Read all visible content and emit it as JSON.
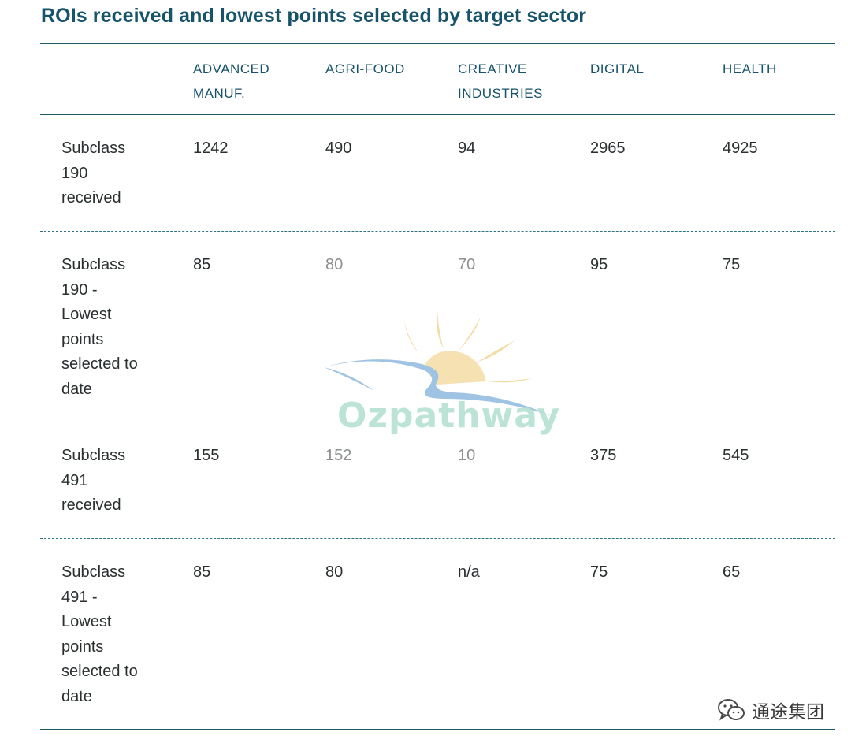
{
  "title": "ROIs received and lowest points selected by target sector",
  "columns": [
    "ADVANCED\nMANUF.",
    "AGRI-FOOD",
    "CREATIVE\nINDUSTRIES",
    "DIGITAL",
    "HEALTH"
  ],
  "rows": [
    {
      "label": "Subclass\n190\nreceived",
      "values": [
        "1242",
        "490",
        "94",
        "2965",
        "4925"
      ]
    },
    {
      "label": "Subclass\n190 -\nLowest\npoints\nselected to\ndate",
      "values": [
        "85",
        "80",
        "70",
        "95",
        "75"
      ]
    },
    {
      "label": "Subclass\n491\nreceived",
      "values": [
        "155",
        "152",
        "10",
        "375",
        "545"
      ]
    },
    {
      "label": "Subclass\n491 -\nLowest\npoints\nselected to\ndate",
      "values": [
        "85",
        "80",
        "n/a",
        "75",
        "65"
      ]
    }
  ],
  "watermark": {
    "text": "Ozpathway"
  },
  "corner_mark": {
    "icon": "wechat-icon",
    "text": "通途集团"
  },
  "colors": {
    "title": "#17536a",
    "header": "#17536a",
    "rule": "#1d5a68",
    "muted_value": "#8c8f90"
  }
}
